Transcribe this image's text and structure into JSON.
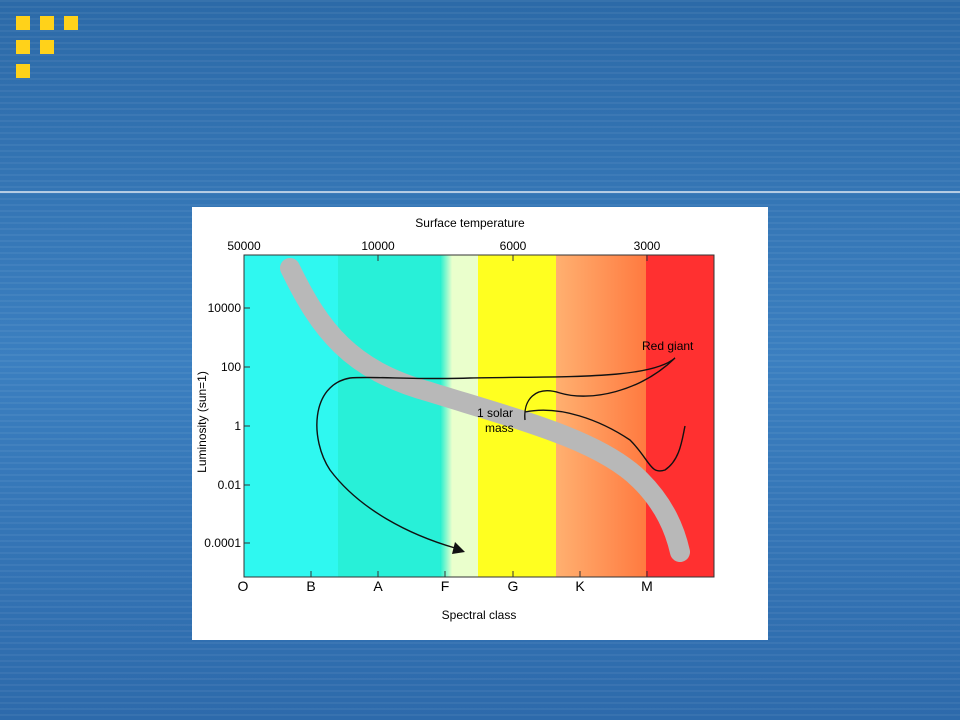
{
  "diagram": {
    "top_axis": {
      "title": "Surface temperature",
      "ticks": [
        50000,
        10000,
        6000,
        3000
      ]
    },
    "left_axis": {
      "title": "Luminosity (sun=1)",
      "ticks": [
        10000,
        100,
        1,
        0.01,
        0.0001
      ]
    },
    "bottom_axis": {
      "title": "Spectral class",
      "classes": [
        "O",
        "B",
        "A",
        "F",
        "G",
        "K",
        "M"
      ]
    },
    "annotations": {
      "red_giant": "Red giant",
      "solar_mass": [
        "1 solar",
        "mass"
      ]
    }
  }
}
